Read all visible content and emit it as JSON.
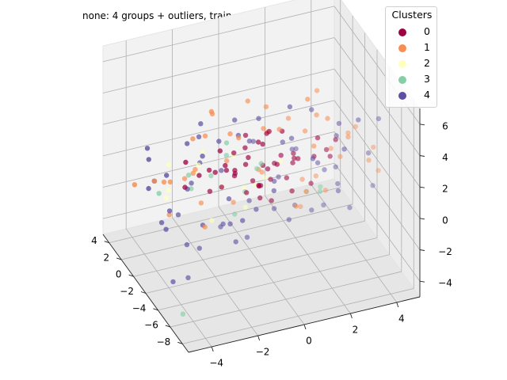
{
  "chart_data": {
    "type": "scatter",
    "projection": "3d",
    "title": "none: 4 groups + outliers, train",
    "xlabel": "",
    "ylabel": "",
    "zlabel": "",
    "xlim": [
      -5,
      5
    ],
    "ylim": [
      -9,
      5
    ],
    "zlim": [
      -5,
      7
    ],
    "x_ticks": [
      "4",
      "2",
      "0",
      "−2",
      "−4"
    ],
    "y_ticks": [
      "4",
      "2",
      "0",
      "−2",
      "−4",
      "−6",
      "−8"
    ],
    "z_ticks": [
      "6",
      "4",
      "2",
      "0",
      "−2",
      "−4"
    ],
    "grid": true,
    "legend": {
      "title": "Clusters",
      "placement": "top-right",
      "entries": [
        {
          "label": "0",
          "color": "#9e0142"
        },
        {
          "label": "1",
          "color": "#f98e52"
        },
        {
          "label": "2",
          "color": "#ffffbe"
        },
        {
          "label": "3",
          "color": "#86cfa5"
        },
        {
          "label": "4",
          "color": "#5e4fa2"
        }
      ]
    },
    "series": [
      {
        "name": "0",
        "color": "#9e0142",
        "points": [
          [
            -0.2,
            -0.6,
            1.2
          ],
          [
            0.3,
            -1.1,
            0.8
          ],
          [
            -0.7,
            -0.3,
            0.4
          ],
          [
            0.9,
            -1.8,
            1.6
          ],
          [
            1.1,
            -0.4,
            0.2
          ],
          [
            -1.3,
            -1.2,
            1.1
          ],
          [
            0.5,
            0.4,
            1.4
          ],
          [
            -0.4,
            -2.1,
            0.6
          ],
          [
            1.6,
            -1.3,
            0.9
          ],
          [
            -0.9,
            -0.9,
            1.9
          ],
          [
            0.1,
            -1.5,
            -0.2
          ],
          [
            0.7,
            -0.2,
            2.2
          ],
          [
            -1.6,
            -0.5,
            0.7
          ],
          [
            1.3,
            -2.2,
            1.2
          ],
          [
            -0.1,
            0.2,
            0.3
          ],
          [
            0.4,
            -2.6,
            1.7
          ],
          [
            -0.6,
            -1.6,
            2.5
          ],
          [
            1.9,
            -0.8,
            0.5
          ],
          [
            -1.1,
            0.6,
            1.3
          ],
          [
            0.2,
            -0.8,
            -0.6
          ],
          [
            0.8,
            -3.1,
            0.9
          ],
          [
            -2.1,
            -1.4,
            1.5
          ],
          [
            1.5,
            0.3,
            1.8
          ],
          [
            -0.3,
            -2.9,
            -0.1
          ],
          [
            2.3,
            -1.9,
            1.1
          ],
          [
            -1.8,
            -2.3,
            0.8
          ],
          [
            0.6,
            -1.0,
            2.8
          ],
          [
            -0.8,
            0.9,
            0.1
          ],
          [
            1.2,
            -2.7,
            2.1
          ],
          [
            -2.4,
            -0.9,
            1.0
          ],
          [
            2.8,
            -0.6,
            1.4
          ],
          [
            0.0,
            -3.5,
            1.3
          ],
          [
            -1.4,
            -3.0,
            1.9
          ],
          [
            3.1,
            -1.5,
            0.6
          ],
          [
            -2.8,
            -0.2,
            1.6
          ],
          [
            0.9,
            1.2,
            0.7
          ],
          [
            -0.5,
            -1.3,
            3.1
          ],
          [
            1.8,
            -3.3,
            0.3
          ],
          [
            -3.2,
            -1.6,
            0.9
          ],
          [
            2.6,
            -2.8,
            1.9
          ],
          [
            0.4,
            -0.1,
            -1.1
          ],
          [
            -1.2,
            -4.1,
            1.2
          ],
          [
            3.5,
            -0.9,
            1.2
          ],
          [
            -0.2,
            -4.4,
            0.5
          ],
          [
            1.4,
            -1.7,
            -0.9
          ],
          [
            -2.6,
            -3.4,
            1.4
          ],
          [
            0.3,
            -1.9,
            1.0
          ],
          [
            -0.9,
            -1.0,
            0.5
          ]
        ]
      },
      {
        "name": "1",
        "color": "#f98e52",
        "points": [
          [
            2.1,
            -1.2,
            2.4
          ],
          [
            -1.5,
            -2.0,
            2.2
          ],
          [
            0.8,
            0.7,
            2.0
          ],
          [
            -2.9,
            -1.8,
            1.8
          ],
          [
            3.3,
            -2.4,
            1.0
          ],
          [
            -0.6,
            -3.8,
            2.3
          ],
          [
            1.7,
            1.5,
            1.2
          ],
          [
            -3.6,
            -0.7,
            0.9
          ],
          [
            2.9,
            0.4,
            0.3
          ],
          [
            -1.9,
            -4.6,
            1.1
          ],
          [
            0.2,
            -2.3,
            3.6
          ],
          [
            3.8,
            -1.8,
            2.0
          ],
          [
            -3.1,
            -2.9,
            2.7
          ],
          [
            1.0,
            -4.9,
            1.7
          ],
          [
            -0.4,
            1.6,
            1.6
          ],
          [
            2.5,
            -3.9,
            2.6
          ],
          [
            -4.0,
            -1.2,
            1.3
          ],
          [
            4.2,
            -0.3,
            0.8
          ],
          [
            0.6,
            -0.5,
            4.1
          ],
          [
            -2.2,
            0.9,
            2.3
          ],
          [
            1.9,
            -5.3,
            0.9
          ],
          [
            -0.8,
            -5.1,
            2.9
          ],
          [
            3.6,
            0.8,
            1.6
          ],
          [
            -4.3,
            -3.2,
            0.4
          ],
          [
            4.6,
            -2.9,
            1.4
          ],
          [
            0.1,
            2.1,
            0.9
          ],
          [
            -1.7,
            -0.4,
            4.4
          ],
          [
            2.2,
            -1.0,
            -1.6
          ],
          [
            -3.4,
            -5.0,
            1.8
          ],
          [
            0.9,
            -3.0,
            4.6
          ],
          [
            4.8,
            -1.4,
            -0.3
          ],
          [
            -4.7,
            -2.3,
            2.2
          ],
          [
            1.3,
            -6.0,
            2.4
          ],
          [
            -2.6,
            -2.6,
            -1.3
          ],
          [
            3.0,
            1.8,
            2.5
          ],
          [
            -0.3,
            -0.9,
            5.0
          ],
          [
            4.5,
            -4.1,
            0.6
          ],
          [
            -4.9,
            0.2,
            0.7
          ],
          [
            2.4,
            -2.0,
            5.3
          ],
          [
            -1.0,
            2.4,
            2.8
          ],
          [
            0.5,
            -6.5,
            1.0
          ],
          [
            -3.9,
            -4.2,
            3.1
          ],
          [
            1.6,
            -1.6,
            -2.0
          ],
          [
            3.7,
            -3.4,
            3.3
          ],
          [
            -2.3,
            -1.5,
            3.8
          ],
          [
            2.7,
            -0.8,
            3.0
          ]
        ]
      },
      {
        "name": "2",
        "color": "#ffffbe",
        "points": [
          [
            -3.4,
            -4.0,
            3.2
          ],
          [
            -2.7,
            -2.6,
            3.5
          ],
          [
            -1.5,
            -4.8,
            2.0
          ],
          [
            -3.9,
            -1.6,
            2.6
          ],
          [
            -0.8,
            -5.6,
            2.8
          ],
          [
            -2.0,
            -3.2,
            1.4
          ],
          [
            -4.3,
            -3.1,
            1.9
          ],
          [
            -1.2,
            -2.0,
            2.4
          ],
          [
            -3.1,
            -5.6,
            0.9
          ],
          [
            -2.4,
            -0.8,
            1.6
          ],
          [
            0.3,
            -4.0,
            2.6
          ],
          [
            -4.8,
            -4.6,
            2.4
          ],
          [
            -1.8,
            -6.2,
            1.6
          ],
          [
            -0.5,
            -2.9,
            0.8
          ]
        ]
      },
      {
        "name": "3",
        "color": "#86cfa5",
        "points": [
          [
            -2.6,
            -3.6,
            2.5
          ],
          [
            -1.4,
            -4.6,
            1.6
          ],
          [
            -3.2,
            -2.2,
            2.0
          ],
          [
            -0.6,
            -3.5,
            2.2
          ],
          [
            -2.0,
            -5.2,
            0.7
          ],
          [
            0.2,
            -1.2,
            1.0
          ],
          [
            -3.8,
            -4.9,
            2.8
          ],
          [
            -1.7,
            -2.7,
            3.0
          ],
          [
            2.1,
            -3.7,
            0.2
          ],
          [
            -4.4,
            -1.9,
            1.1
          ],
          [
            -0.9,
            0.3,
            1.9
          ],
          [
            1.0,
            -5.6,
            1.3
          ],
          [
            2.8,
            -1.0,
            -1.8
          ],
          [
            -4.9,
            -7.7,
            -3.3
          ]
        ]
      },
      {
        "name": "4",
        "color": "#5e4fa2",
        "points": [
          [
            -1.1,
            -4.2,
            4.5
          ],
          [
            -3.7,
            -3.9,
            2.2
          ],
          [
            -2.1,
            -0.3,
            1.8
          ],
          [
            0.6,
            -3.2,
            3.3
          ],
          [
            -4.6,
            -5.8,
            1.9
          ],
          [
            1.8,
            -4.4,
            2.2
          ],
          [
            -0.4,
            -6.3,
            3.1
          ],
          [
            -2.9,
            -6.7,
            1.2
          ],
          [
            -4.1,
            -2.5,
            0.2
          ],
          [
            -1.6,
            -1.1,
            3.0
          ],
          [
            0.4,
            -5.0,
            -0.6
          ],
          [
            -3.3,
            -4.4,
            4.0
          ],
          [
            -2.3,
            -5.6,
            0.4
          ],
          [
            1.2,
            -2.4,
            2.9
          ],
          [
            -0.7,
            -3.8,
            -0.2
          ],
          [
            -4.5,
            -0.6,
            2.6
          ],
          [
            2.4,
            -5.4,
            1.2
          ],
          [
            -1.9,
            -7.2,
            2.6
          ],
          [
            -3.0,
            -1.2,
            3.4
          ],
          [
            0.9,
            -6.8,
            0.8
          ],
          [
            -5.0,
            -3.4,
            2.9
          ],
          [
            -0.2,
            -2.3,
            4.6
          ],
          [
            2.9,
            -3.6,
            -0.4
          ],
          [
            -2.5,
            -4.9,
            3.5
          ],
          [
            1.6,
            -0.6,
            3.8
          ],
          [
            -4.0,
            -7.0,
            0.2
          ],
          [
            -1.3,
            -5.6,
            5.3
          ],
          [
            0.0,
            -4.1,
            1.5
          ],
          [
            3.3,
            -2.2,
            3.0
          ],
          [
            -3.6,
            -0.1,
            1.0
          ],
          [
            -0.9,
            -7.5,
            1.9
          ],
          [
            2.1,
            -6.2,
            2.8
          ],
          [
            -2.8,
            -3.0,
            -0.9
          ],
          [
            4.1,
            -4.0,
            1.8
          ],
          [
            -4.8,
            -1.5,
            3.9
          ],
          [
            0.7,
            -1.4,
            -0.8
          ],
          [
            -1.5,
            -3.3,
            5.5
          ],
          [
            3.0,
            -5.1,
            -0.7
          ],
          [
            -3.9,
            -5.3,
            3.4
          ],
          [
            1.4,
            -7.0,
            3.3
          ],
          [
            -0.6,
            -0.5,
            2.7
          ],
          [
            -2.2,
            -8.0,
            0.8
          ],
          [
            4.4,
            -1.2,
            2.3
          ],
          [
            -5.0,
            -4.6,
            0.9
          ],
          [
            0.3,
            -5.9,
            4.4
          ],
          [
            2.7,
            -0.2,
            -0.1
          ],
          [
            -3.4,
            -8.2,
            2.0
          ],
          [
            -1.0,
            -2.7,
            -1.4
          ],
          [
            3.6,
            -6.6,
            1.3
          ],
          [
            -4.4,
            -0.2,
            0.5
          ],
          [
            -0.3,
            -8.6,
            2.5
          ],
          [
            1.9,
            -3.0,
            4.8
          ],
          [
            -2.6,
            -1.9,
            4.9
          ],
          [
            4.8,
            -3.0,
            3.2
          ],
          [
            -4.7,
            -7.8,
            -1.0
          ],
          [
            0.2,
            -6.9,
            5.0
          ],
          [
            -1.9,
            -5.0,
            -1.2
          ],
          [
            2.5,
            -4.8,
            3.9
          ],
          [
            -4.2,
            -5.7,
            -0.2
          ],
          [
            3.9,
            -0.8,
            0.4
          ],
          [
            -1.3,
            -1.6,
            -0.5
          ],
          [
            1.1,
            -8.0,
            1.7
          ],
          [
            -3.1,
            -3.5,
            5.1
          ],
          [
            -4.9,
            -6.1,
            -2.1
          ],
          [
            -4.6,
            -3.8,
            -0.1
          ]
        ]
      }
    ]
  }
}
